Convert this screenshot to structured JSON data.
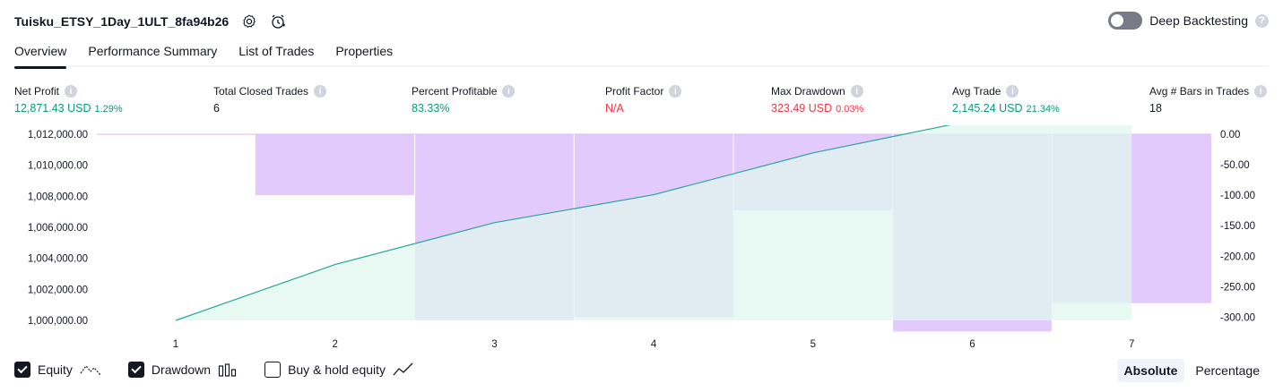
{
  "header": {
    "title": "Tuisku_ETSY_1Day_1ULT_8fa94b26",
    "icons": [
      "settings-icon",
      "alert-clock-icon"
    ],
    "deep_backtesting_label": "Deep Backtesting",
    "deep_backtesting_enabled": false
  },
  "tabs": [
    {
      "label": "Overview",
      "active": true
    },
    {
      "label": "Performance Summary",
      "active": false
    },
    {
      "label": "List of Trades",
      "active": false
    },
    {
      "label": "Properties",
      "active": false
    }
  ],
  "metrics": {
    "net_profit": {
      "label": "Net Profit",
      "value": "12,871.43 USD",
      "sub": "1.29%"
    },
    "total_closed_trades": {
      "label": "Total Closed Trades",
      "value": "6"
    },
    "percent_profitable": {
      "label": "Percent Profitable",
      "value": "83.33%"
    },
    "profit_factor": {
      "label": "Profit Factor",
      "value": "N/A"
    },
    "max_drawdown": {
      "label": "Max Drawdown",
      "value": "323.49 USD",
      "sub": "0.03%"
    },
    "avg_trade": {
      "label": "Avg Trade",
      "value": "2,145.24 USD",
      "sub": "21.34%"
    },
    "avg_bars": {
      "label": "Avg # Bars in Trades",
      "value": "18"
    }
  },
  "colors": {
    "equity_line": "#26a69a",
    "equity_fill": "#e0f5ef",
    "drawdown_fill": "#d9b8fb",
    "green": "#089981",
    "red": "#f23645"
  },
  "chart_data": {
    "type": "line",
    "x": [
      1,
      2,
      3,
      4,
      5,
      6,
      7
    ],
    "series": [
      {
        "values": [
          1000000,
          1003600,
          1006300,
          1008100,
          1010800,
          1012900,
          1012900
        ]
      }
    ],
    "drawdown": [
      {
        "x_start": 1.5,
        "x_end": 2.5,
        "value": -100
      },
      {
        "x_start": 2.5,
        "x_end": 3.5,
        "value": -305
      },
      {
        "x_start": 3.5,
        "x_end": 4.5,
        "value": -300
      },
      {
        "x_start": 4.5,
        "x_end": 5.5,
        "value": -125
      },
      {
        "x_start": 5.5,
        "x_end": 6.5,
        "value": -323.49
      },
      {
        "x_start": 6.5,
        "x_end": 7.5,
        "value": -277
      }
    ],
    "left_axis": {
      "ylim": [
        1000000,
        1012000
      ],
      "ticks": [
        "1,012,000.00",
        "1,010,000.00",
        "1,008,000.00",
        "1,006,000.00",
        "1,004,000.00",
        "1,002,000.00",
        "1,000,000.00"
      ],
      "tick_values": [
        1012000,
        1010000,
        1008000,
        1006000,
        1004000,
        1002000,
        1000000
      ]
    },
    "right_axis": {
      "ylim": [
        -320,
        0
      ],
      "ticks": [
        "0.00",
        "-50.00",
        "-100.00",
        "-150.00",
        "-200.00",
        "-250.00",
        "-300.00"
      ],
      "tick_values": [
        0,
        -50,
        -100,
        -150,
        -200,
        -250,
        -300
      ]
    },
    "x_ticks": [
      "1",
      "2",
      "3",
      "4",
      "5",
      "6",
      "7"
    ],
    "grid": false
  },
  "legend": [
    {
      "label": "Equity",
      "checked": true,
      "icon": "equity-line-icon"
    },
    {
      "label": "Drawdown",
      "checked": true,
      "icon": "drawdown-bars-icon"
    },
    {
      "label": "Buy & hold equity",
      "checked": false,
      "icon": "buy-hold-line-icon"
    }
  ],
  "modes": [
    {
      "label": "Absolute",
      "active": true
    },
    {
      "label": "Percentage",
      "active": false
    }
  ]
}
